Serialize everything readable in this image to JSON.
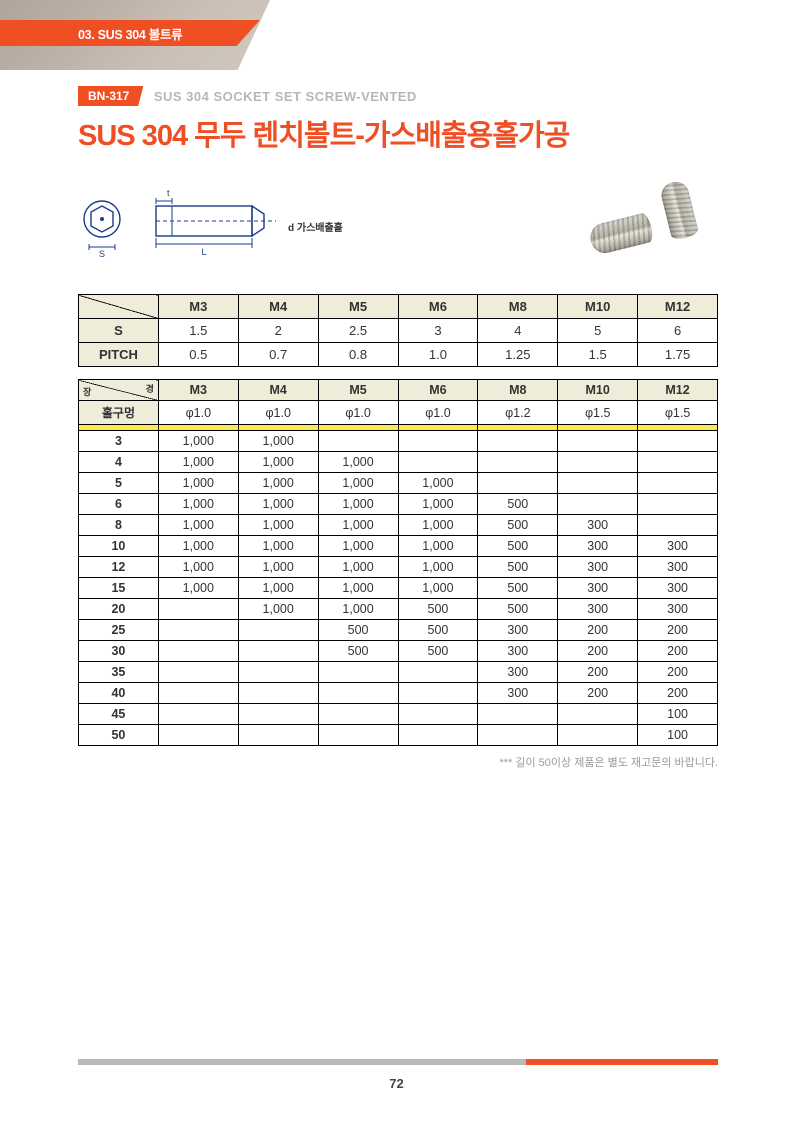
{
  "header": {
    "category": "03. SUS 304 볼트류",
    "badge": "BN-317",
    "subtitle": "SUS 304 SOCKET SET SCREW-VENTED",
    "title": "SUS 304 무두 렌치볼트-가스배출용홀가공"
  },
  "diagram": {
    "dim_t": "t",
    "dim_S": "S",
    "dim_L": "L",
    "vent_label": "d 가스배출홀"
  },
  "spec_table": {
    "columns": [
      "M3",
      "M4",
      "M5",
      "M6",
      "M8",
      "M10",
      "M12"
    ],
    "rows": [
      {
        "label": "S",
        "values": [
          "1.5",
          "2",
          "2.5",
          "3",
          "4",
          "5",
          "6"
        ]
      },
      {
        "label": "PITCH",
        "values": [
          "0.5",
          "0.7",
          "0.8",
          "1.0",
          "1.25",
          "1.5",
          "1.75"
        ]
      }
    ]
  },
  "main_table": {
    "diag_left": "장",
    "diag_right": "경",
    "columns": [
      "M3",
      "M4",
      "M5",
      "M6",
      "M8",
      "M10",
      "M12"
    ],
    "hole_row": {
      "label": "홀구멍",
      "values": [
        "φ1.0",
        "φ1.0",
        "φ1.0",
        "φ1.0",
        "φ1.2",
        "φ1.5",
        "φ1.5"
      ]
    },
    "rows": [
      {
        "len": "3",
        "v": [
          "1,000",
          "1,000",
          "",
          "",
          "",
          "",
          ""
        ]
      },
      {
        "len": "4",
        "v": [
          "1,000",
          "1,000",
          "1,000",
          "",
          "",
          "",
          ""
        ]
      },
      {
        "len": "5",
        "v": [
          "1,000",
          "1,000",
          "1,000",
          "1,000",
          "",
          "",
          ""
        ]
      },
      {
        "len": "6",
        "v": [
          "1,000",
          "1,000",
          "1,000",
          "1,000",
          "500",
          "",
          ""
        ]
      },
      {
        "len": "8",
        "v": [
          "1,000",
          "1,000",
          "1,000",
          "1,000",
          "500",
          "300",
          ""
        ]
      },
      {
        "len": "10",
        "v": [
          "1,000",
          "1,000",
          "1,000",
          "1,000",
          "500",
          "300",
          "300"
        ]
      },
      {
        "len": "12",
        "v": [
          "1,000",
          "1,000",
          "1,000",
          "1,000",
          "500",
          "300",
          "300"
        ]
      },
      {
        "len": "15",
        "v": [
          "1,000",
          "1,000",
          "1,000",
          "1,000",
          "500",
          "300",
          "300"
        ]
      },
      {
        "len": "20",
        "v": [
          "",
          "1,000",
          "1,000",
          "500",
          "500",
          "300",
          "300"
        ]
      },
      {
        "len": "25",
        "v": [
          "",
          "",
          "500",
          "500",
          "300",
          "200",
          "200"
        ]
      },
      {
        "len": "30",
        "v": [
          "",
          "",
          "500",
          "500",
          "300",
          "200",
          "200"
        ]
      },
      {
        "len": "35",
        "v": [
          "",
          "",
          "",
          "",
          "300",
          "200",
          "200"
        ]
      },
      {
        "len": "40",
        "v": [
          "",
          "",
          "",
          "",
          "300",
          "200",
          "200"
        ]
      },
      {
        "len": "45",
        "v": [
          "",
          "",
          "",
          "",
          "",
          "",
          "100"
        ]
      },
      {
        "len": "50",
        "v": [
          "",
          "",
          "",
          "",
          "",
          "",
          "100"
        ]
      }
    ]
  },
  "footnote": "*** 길이 50이상 제품은 별도 재고문의 바랍니다.",
  "page_number": "72",
  "colors": {
    "accent": "#f04e23",
    "header_bg": "#efecd9",
    "yellow": "#ffe84f",
    "grey_text": "#b7b7b7"
  }
}
